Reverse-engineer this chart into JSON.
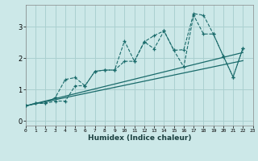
{
  "xlabel": "Humidex (Indice chaleur)",
  "bg_color": "#cce8e8",
  "grid_color": "#aad0d0",
  "line_color": "#1a6b6b",
  "xlim": [
    0,
    23
  ],
  "ylim": [
    -0.15,
    3.7
  ],
  "xticks": [
    0,
    1,
    2,
    3,
    4,
    5,
    6,
    7,
    8,
    9,
    10,
    11,
    12,
    13,
    14,
    15,
    16,
    17,
    18,
    19,
    20,
    21,
    22,
    23
  ],
  "yticks": [
    0,
    1,
    2,
    3
  ],
  "line1_x": [
    0,
    1,
    2,
    3,
    4,
    5,
    6,
    7,
    8,
    9,
    10,
    11,
    12,
    13,
    14,
    15,
    16,
    17,
    18,
    19,
    20,
    21,
    22
  ],
  "line1_y": [
    0.48,
    0.56,
    0.56,
    0.75,
    1.32,
    1.38,
    1.12,
    1.58,
    1.62,
    1.62,
    2.55,
    1.9,
    2.52,
    2.72,
    2.87,
    2.25,
    2.27,
    3.42,
    3.37,
    2.77,
    2.07,
    1.4,
    2.32
  ],
  "line2_x": [
    0,
    1,
    2,
    3,
    4,
    5,
    6,
    7,
    8,
    9,
    10,
    11,
    12,
    13,
    14,
    15,
    16,
    17,
    18,
    19,
    20,
    21,
    22
  ],
  "line2_y": [
    0.48,
    0.56,
    0.56,
    0.63,
    0.63,
    1.12,
    1.12,
    1.58,
    1.62,
    1.62,
    1.9,
    1.9,
    2.52,
    2.3,
    2.87,
    2.25,
    1.72,
    3.37,
    2.77,
    2.77,
    2.07,
    1.4,
    2.32
  ],
  "trend1_x": [
    0,
    22
  ],
  "trend1_y": [
    0.48,
    2.18
  ],
  "trend2_x": [
    0,
    22
  ],
  "trend2_y": [
    0.48,
    1.92
  ]
}
